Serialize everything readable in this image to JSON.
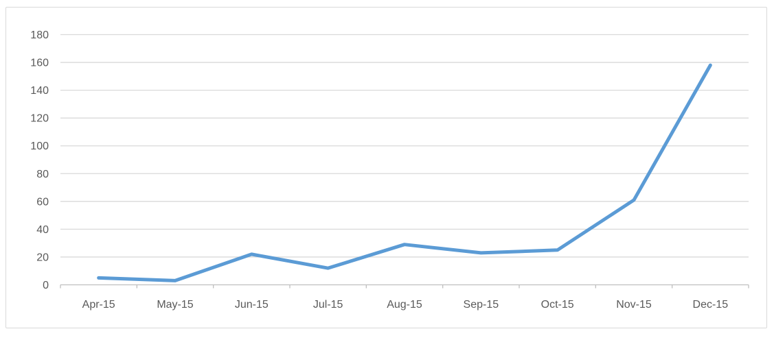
{
  "chart_data": {
    "type": "line",
    "title": "",
    "xlabel": "",
    "ylabel": "",
    "categories": [
      "Apr-15",
      "May-15",
      "Jun-15",
      "Jul-15",
      "Aug-15",
      "Sep-15",
      "Oct-15",
      "Nov-15",
      "Dec-15"
    ],
    "series": [
      {
        "name": "",
        "values": [
          5,
          3,
          22,
          12,
          29,
          23,
          25,
          61,
          158
        ]
      }
    ],
    "ylim": [
      0,
      180
    ],
    "yticks": [
      0,
      20,
      40,
      60,
      80,
      100,
      120,
      140,
      160,
      180
    ],
    "grid": "horizontal",
    "legend": "none",
    "colors": {
      "line": "#5B9BD5",
      "gridline": "#D9D9D9",
      "axis": "#BFBFBF",
      "tick_label": "#595959",
      "frame_border": "#D9D9D9",
      "background": "#FFFFFF"
    }
  }
}
